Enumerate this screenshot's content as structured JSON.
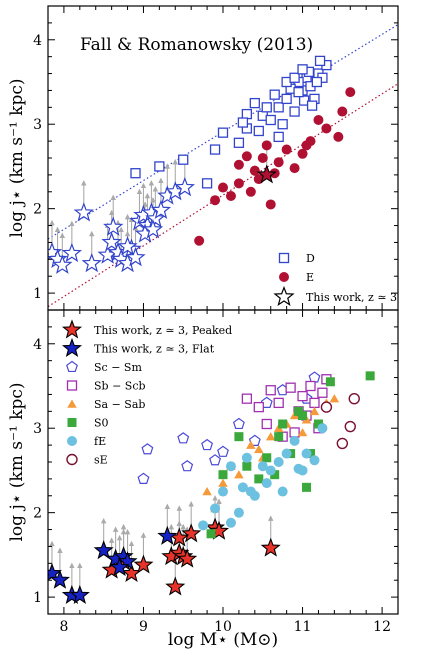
{
  "colors": {
    "disk": "#3344cc",
    "elliptical": "#b01032",
    "star_peaked": "#e8332a",
    "star_flat": "#1622c4",
    "sc_sm": "#4a4ad8",
    "sb_scb": "#a030b0",
    "sa_sab": "#f59a3a",
    "s0": "#3aa83a",
    "fe": "#6cc0e0",
    "se": "#7a1030",
    "arrow": "#aaaaaa"
  },
  "chart_data": [
    {
      "type": "scatter",
      "title": "Fall & Romanowsky (2013)",
      "ylabel": "log j⋆ (km s⁻¹ kpc)",
      "xlim": [
        7.8,
        12.2
      ],
      "ylim": [
        0.8,
        4.4
      ],
      "yticks": [
        "1",
        "2",
        "3",
        "4"
      ],
      "legend_placement": "lower-right",
      "legend": [
        "D",
        "E",
        "This work, z ≃ 3"
      ],
      "trend_lines": [
        {
          "series": "D",
          "x": [
            7.8,
            12.2
          ],
          "y": [
            1.64,
            4.18
          ]
        },
        {
          "series": "E",
          "x": [
            7.8,
            12.2
          ],
          "y": [
            0.84,
            3.48
          ]
        }
      ],
      "series": [
        {
          "name": "D",
          "marker": "open-square",
          "points": [
            [
              8.9,
              2.42
            ],
            [
              9.2,
              2.5
            ],
            [
              9.5,
              2.58
            ],
            [
              9.9,
              2.7
            ],
            [
              10.2,
              2.78
            ],
            [
              9.8,
              2.3
            ],
            [
              10.0,
              2.9
            ],
            [
              10.3,
              2.95
            ],
            [
              10.5,
              3.1
            ],
            [
              10.6,
              3.05
            ],
            [
              10.7,
              3.2
            ],
            [
              10.8,
              3.3
            ],
            [
              10.9,
              3.15
            ],
            [
              11.0,
              3.4
            ],
            [
              11.05,
              3.55
            ],
            [
              11.1,
              3.45
            ],
            [
              11.2,
              3.6
            ],
            [
              11.15,
              3.3
            ],
            [
              11.3,
              3.7
            ],
            [
              11.25,
              3.55
            ],
            [
              10.4,
              3.25
            ],
            [
              10.65,
              3.35
            ],
            [
              10.95,
              3.5
            ],
            [
              11.08,
              3.62
            ],
            [
              11.18,
              3.5
            ],
            [
              11.22,
              3.75
            ],
            [
              10.75,
              3.0
            ],
            [
              10.55,
              3.2
            ],
            [
              10.85,
              3.42
            ],
            [
              11.02,
              3.28
            ],
            [
              10.3,
              3.12
            ],
            [
              10.25,
              3.02
            ],
            [
              10.45,
              2.92
            ],
            [
              10.7,
              2.85
            ],
            [
              10.95,
              3.38
            ],
            [
              11.12,
              3.22
            ],
            [
              10.8,
              3.5
            ],
            [
              10.9,
              3.55
            ],
            [
              11.0,
              3.65
            ]
          ]
        },
        {
          "name": "E",
          "marker": "filled-circle",
          "points": [
            [
              9.7,
              1.62
            ],
            [
              9.9,
              2.1
            ],
            [
              10.0,
              2.25
            ],
            [
              10.1,
              2.15
            ],
            [
              10.2,
              2.3
            ],
            [
              10.35,
              2.2
            ],
            [
              10.4,
              2.45
            ],
            [
              10.5,
              2.6
            ],
            [
              10.6,
              2.05
            ],
            [
              10.7,
              2.55
            ],
            [
              10.8,
              2.7
            ],
            [
              10.9,
              2.48
            ],
            [
              11.0,
              2.65
            ],
            [
              11.1,
              2.8
            ],
            [
              11.2,
              3.05
            ],
            [
              11.3,
              2.95
            ],
            [
              11.45,
              2.85
            ],
            [
              11.5,
              3.15
            ],
            [
              11.6,
              3.38
            ],
            [
              10.45,
              2.35
            ],
            [
              10.3,
              2.62
            ],
            [
              10.55,
              2.75
            ],
            [
              10.65,
              2.42
            ],
            [
              10.2,
              2.52
            ],
            [
              11.05,
              2.75
            ]
          ]
        },
        {
          "name": "This work, z ≃ 3",
          "marker": "open-star",
          "points": [
            [
              7.85,
              1.48
            ],
            [
              7.92,
              1.4
            ],
            [
              7.98,
              1.33
            ],
            [
              8.1,
              1.47
            ],
            [
              8.25,
              1.95
            ],
            [
              8.35,
              1.35
            ],
            [
              8.55,
              1.45
            ],
            [
              8.6,
              1.6
            ],
            [
              8.62,
              1.78
            ],
            [
              8.68,
              1.48
            ],
            [
              8.72,
              1.4
            ],
            [
              8.8,
              1.35
            ],
            [
              8.85,
              1.52
            ],
            [
              8.9,
              1.42
            ],
            [
              8.95,
              1.85
            ],
            [
              9.0,
              1.92
            ],
            [
              9.05,
              1.8
            ],
            [
              9.1,
              1.95
            ],
            [
              9.15,
              1.88
            ],
            [
              9.22,
              1.98
            ],
            [
              9.3,
              2.15
            ],
            [
              9.4,
              2.2
            ],
            [
              9.52,
              2.25
            ],
            [
              9.02,
              1.7
            ],
            [
              9.12,
              1.75
            ],
            [
              8.8,
              1.55
            ]
          ]
        },
        {
          "name": "This work, z ≃ 3 (highlighted)",
          "marker": "filled-star",
          "points": [
            [
              10.55,
              2.4
            ]
          ]
        }
      ]
    },
    {
      "type": "scatter",
      "xlabel": "log M⋆ (M⊙)",
      "ylabel": "log j⋆ (km s⁻¹ kpc)",
      "xlim": [
        7.8,
        12.2
      ],
      "ylim": [
        0.8,
        4.4
      ],
      "xticks": [
        "8",
        "9",
        "10",
        "11",
        "12"
      ],
      "yticks": [
        "1",
        "2",
        "3",
        "4"
      ],
      "legend_placement": "top-left",
      "legend": [
        "This work, z ≃ 3, Peaked",
        "This work, z ≃ 3, Flat",
        "Sc − Sm",
        "Sb − Scb",
        "Sa − Sab",
        "S0",
        "fE",
        "sE"
      ],
      "series": [
        {
          "name": "This work, z ≃ 3, Peaked",
          "marker": "filled-star",
          "points": [
            [
              8.6,
              1.32
            ],
            [
              8.75,
              1.42
            ],
            [
              8.85,
              1.28
            ],
            [
              9.0,
              1.38
            ],
            [
              9.35,
              1.48
            ],
            [
              9.45,
              1.52
            ],
            [
              9.5,
              1.48
            ],
            [
              9.55,
              1.45
            ],
            [
              9.6,
              1.75
            ],
            [
              9.4,
              1.12
            ],
            [
              9.9,
              1.82
            ],
            [
              9.95,
              1.78
            ],
            [
              10.6,
              1.58
            ],
            [
              9.45,
              1.7
            ]
          ]
        },
        {
          "name": "This work, z ≃ 3, Flat",
          "marker": "filled-star",
          "points": [
            [
              7.85,
              1.28
            ],
            [
              7.95,
              1.2
            ],
            [
              8.1,
              1.02
            ],
            [
              8.2,
              1.02
            ],
            [
              8.5,
              1.55
            ],
            [
              8.65,
              1.45
            ],
            [
              8.75,
              1.48
            ],
            [
              8.8,
              1.42
            ],
            [
              8.7,
              1.35
            ],
            [
              9.3,
              1.72
            ]
          ]
        },
        {
          "name": "Sc − Sm",
          "marker": "open-pentagon",
          "points": [
            [
              9.0,
              2.4
            ],
            [
              9.05,
              2.75
            ],
            [
              9.5,
              2.88
            ],
            [
              9.55,
              2.55
            ],
            [
              9.8,
              2.8
            ],
            [
              9.9,
              2.62
            ],
            [
              10.2,
              3.05
            ],
            [
              10.4,
              2.85
            ],
            [
              10.55,
              3.3
            ],
            [
              10.75,
              3.45
            ],
            [
              11.05,
              3.35
            ],
            [
              11.15,
              3.6
            ],
            [
              10.0,
              2.72
            ]
          ]
        },
        {
          "name": "Sb − Scb",
          "marker": "open-square",
          "points": [
            [
              10.3,
              3.35
            ],
            [
              10.45,
              3.25
            ],
            [
              10.55,
              3.05
            ],
            [
              10.6,
              3.45
            ],
            [
              10.7,
              3.3
            ],
            [
              10.85,
              3.48
            ],
            [
              10.95,
              3.2
            ],
            [
              11.0,
              3.38
            ],
            [
              11.05,
              3.15
            ],
            [
              11.1,
              3.5
            ],
            [
              11.15,
              3.3
            ],
            [
              11.2,
              3.0
            ],
            [
              11.25,
              3.42
            ],
            [
              10.9,
              2.95
            ],
            [
              10.75,
              2.9
            ],
            [
              11.3,
              3.58
            ]
          ]
        },
        {
          "name": "Sa − Sab",
          "marker": "filled-triangle",
          "points": [
            [
              9.8,
              2.25
            ],
            [
              9.9,
              2.05
            ],
            [
              10.0,
              2.35
            ],
            [
              10.1,
              2.55
            ],
            [
              10.2,
              2.45
            ],
            [
              10.3,
              2.6
            ],
            [
              10.45,
              2.75
            ],
            [
              10.6,
              2.9
            ],
            [
              10.7,
              3.0
            ],
            [
              10.8,
              3.05
            ],
            [
              10.9,
              3.15
            ],
            [
              11.0,
              2.95
            ],
            [
              11.05,
              3.1
            ],
            [
              11.15,
              3.2
            ],
            [
              11.3,
              3.3
            ],
            [
              11.4,
              3.35
            ],
            [
              10.5,
              2.65
            ],
            [
              10.35,
              2.8
            ]
          ]
        },
        {
          "name": "S0",
          "marker": "filled-square",
          "points": [
            [
              9.85,
              1.75
            ],
            [
              10.0,
              2.45
            ],
            [
              10.2,
              2.9
            ],
            [
              10.45,
              2.4
            ],
            [
              10.55,
              2.65
            ],
            [
              10.65,
              2.45
            ],
            [
              10.75,
              3.05
            ],
            [
              10.85,
              2.7
            ],
            [
              10.95,
              3.2
            ],
            [
              11.0,
              3.15
            ],
            [
              11.05,
              2.3
            ],
            [
              11.1,
              2.7
            ],
            [
              11.2,
              3.05
            ],
            [
              11.35,
              3.55
            ],
            [
              11.85,
              3.62
            ],
            [
              10.3,
              2.55
            ],
            [
              10.7,
              2.9
            ]
          ]
        },
        {
          "name": "fE",
          "marker": "filled-circle",
          "points": [
            [
              9.75,
              1.85
            ],
            [
              9.9,
              2.05
            ],
            [
              10.0,
              2.25
            ],
            [
              10.1,
              1.88
            ],
            [
              10.2,
              2.0
            ],
            [
              10.25,
              2.3
            ],
            [
              10.35,
              2.25
            ],
            [
              10.4,
              2.2
            ],
            [
              10.5,
              2.55
            ],
            [
              10.6,
              2.5
            ],
            [
              10.7,
              2.6
            ],
            [
              10.8,
              2.7
            ],
            [
              10.9,
              2.85
            ],
            [
              10.95,
              2.52
            ],
            [
              11.0,
              2.5
            ],
            [
              11.05,
              2.7
            ],
            [
              11.15,
              2.62
            ],
            [
              11.25,
              3.0
            ],
            [
              10.1,
              2.55
            ],
            [
              10.3,
              2.65
            ],
            [
              10.55,
              2.35
            ],
            [
              10.75,
              2.25
            ]
          ]
        },
        {
          "name": "sE",
          "marker": "open-circle",
          "points": [
            [
              11.3,
              3.25
            ],
            [
              11.5,
              2.82
            ],
            [
              11.6,
              3.02
            ],
            [
              11.65,
              3.35
            ]
          ]
        }
      ]
    }
  ]
}
